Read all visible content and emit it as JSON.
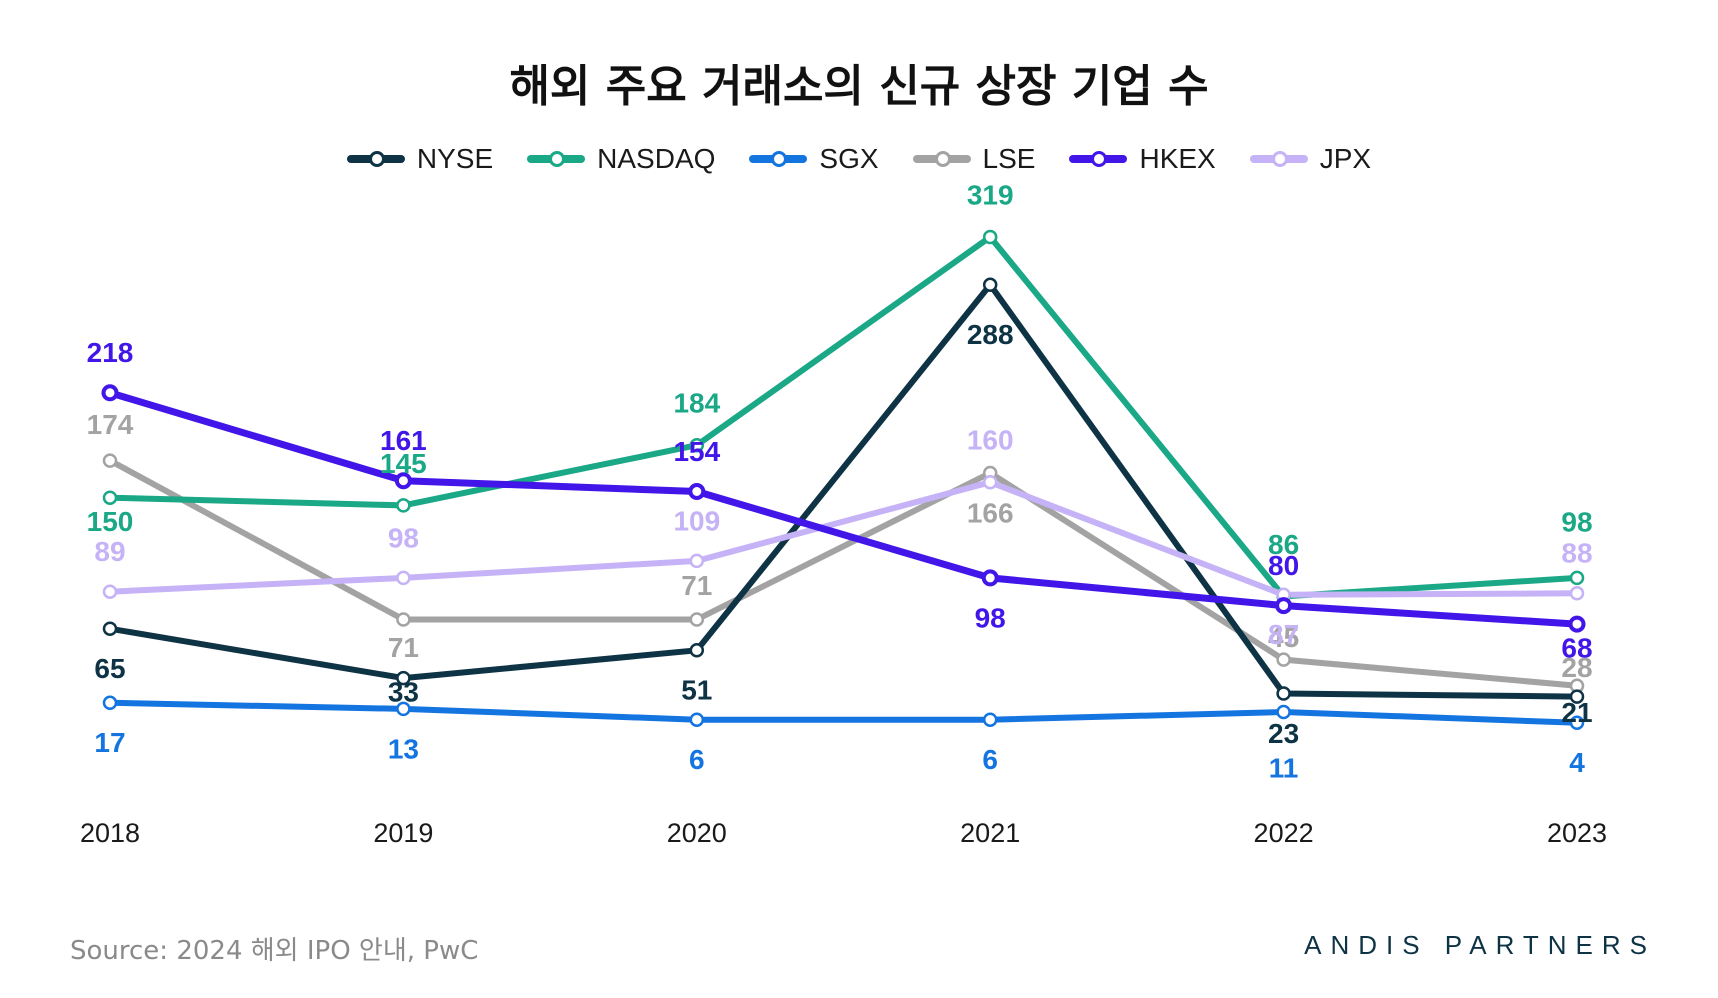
{
  "chart_data": {
    "type": "line",
    "title": "해외 주요 거래소의 신규 상장 기업 수",
    "x": [
      "2018",
      "2019",
      "2020",
      "2021",
      "2022",
      "2023"
    ],
    "xlabel": "",
    "ylabel": "",
    "ylim": [
      0,
      340
    ],
    "grid": false,
    "legend_position": "top-center",
    "series": [
      {
        "name": "NYSE",
        "color": "#0e3345",
        "values": [
          65,
          33,
          51,
          288,
          23,
          21
        ]
      },
      {
        "name": "NASDAQ",
        "color": "#1aa886",
        "values": [
          150,
          145,
          184,
          319,
          86,
          98
        ]
      },
      {
        "name": "SGX",
        "color": "#1474e0",
        "values": [
          17,
          13,
          6,
          6,
          11,
          4
        ]
      },
      {
        "name": "LSE",
        "color": "#a3a3a3",
        "values": [
          174,
          71,
          71,
          166,
          45,
          28
        ]
      },
      {
        "name": "HKEX",
        "color": "#4216e8",
        "values": [
          218,
          161,
          154,
          98,
          80,
          68
        ]
      },
      {
        "name": "JPX",
        "color": "#c6b2f6",
        "values": [
          89,
          98,
          109,
          160,
          87,
          88
        ]
      }
    ]
  },
  "footer": {
    "source": "Source: 2024 해외 IPO 안내, PwC",
    "brand": "ANDIS PARTNERS"
  }
}
